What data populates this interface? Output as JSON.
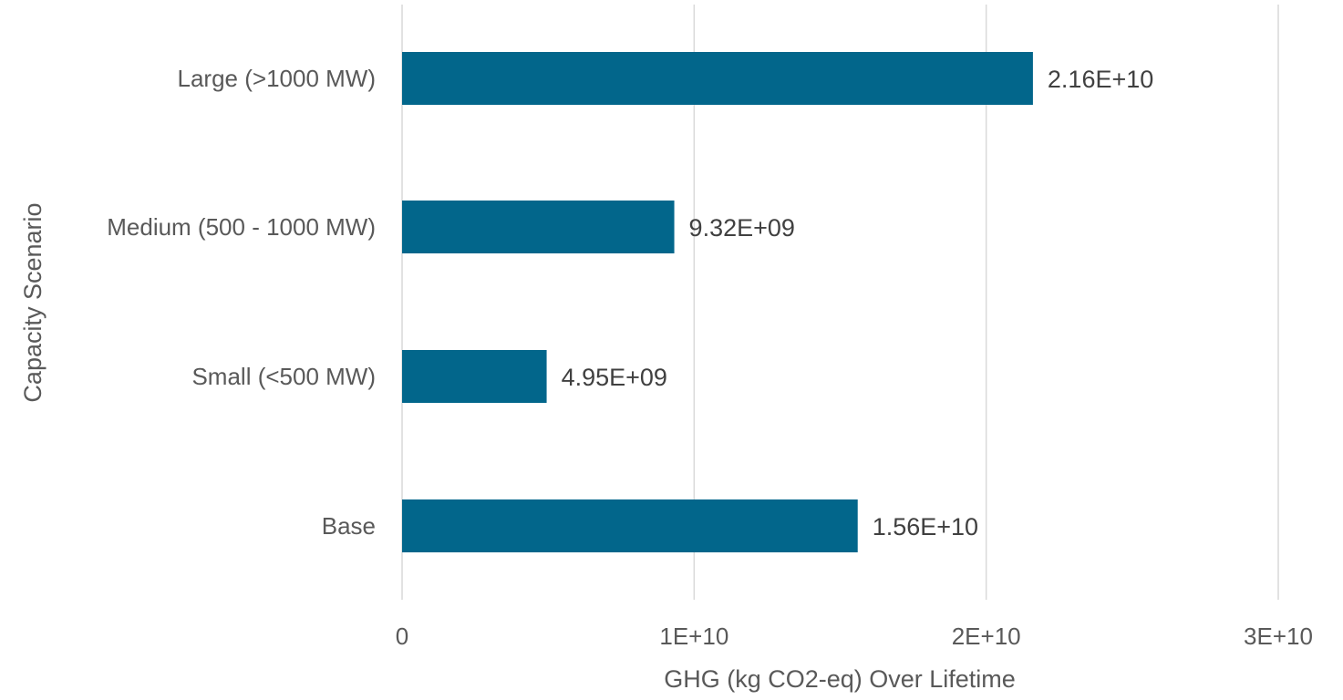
{
  "chart_data": {
    "type": "bar",
    "orientation": "horizontal",
    "title": "",
    "categories": [
      "Base",
      "Small (<500 MW)",
      "Medium (500 - 1000 MW)",
      "Large (>1000 MW)"
    ],
    "values": [
      15600000000,
      4950000000,
      9320000000,
      21600000000
    ],
    "data_labels": [
      "1.56E+10",
      "4.95E+09",
      "9.32E+09",
      "2.16E+10"
    ],
    "xlabel": "GHG (kg CO2-eq) Over Lifetime",
    "ylabel": "Capacity Scenario",
    "xlim": [
      0,
      30000000000
    ],
    "x_ticks": [
      0,
      10000000000,
      20000000000,
      30000000000
    ],
    "x_tick_labels": [
      "0",
      "1E+10",
      "2E+10",
      "3E+10"
    ],
    "grid": "vertical",
    "legend": "none",
    "colors": {
      "bar": "#02668b",
      "grid": "#d9d9d9",
      "text": "#595959",
      "label": "#404040"
    }
  }
}
